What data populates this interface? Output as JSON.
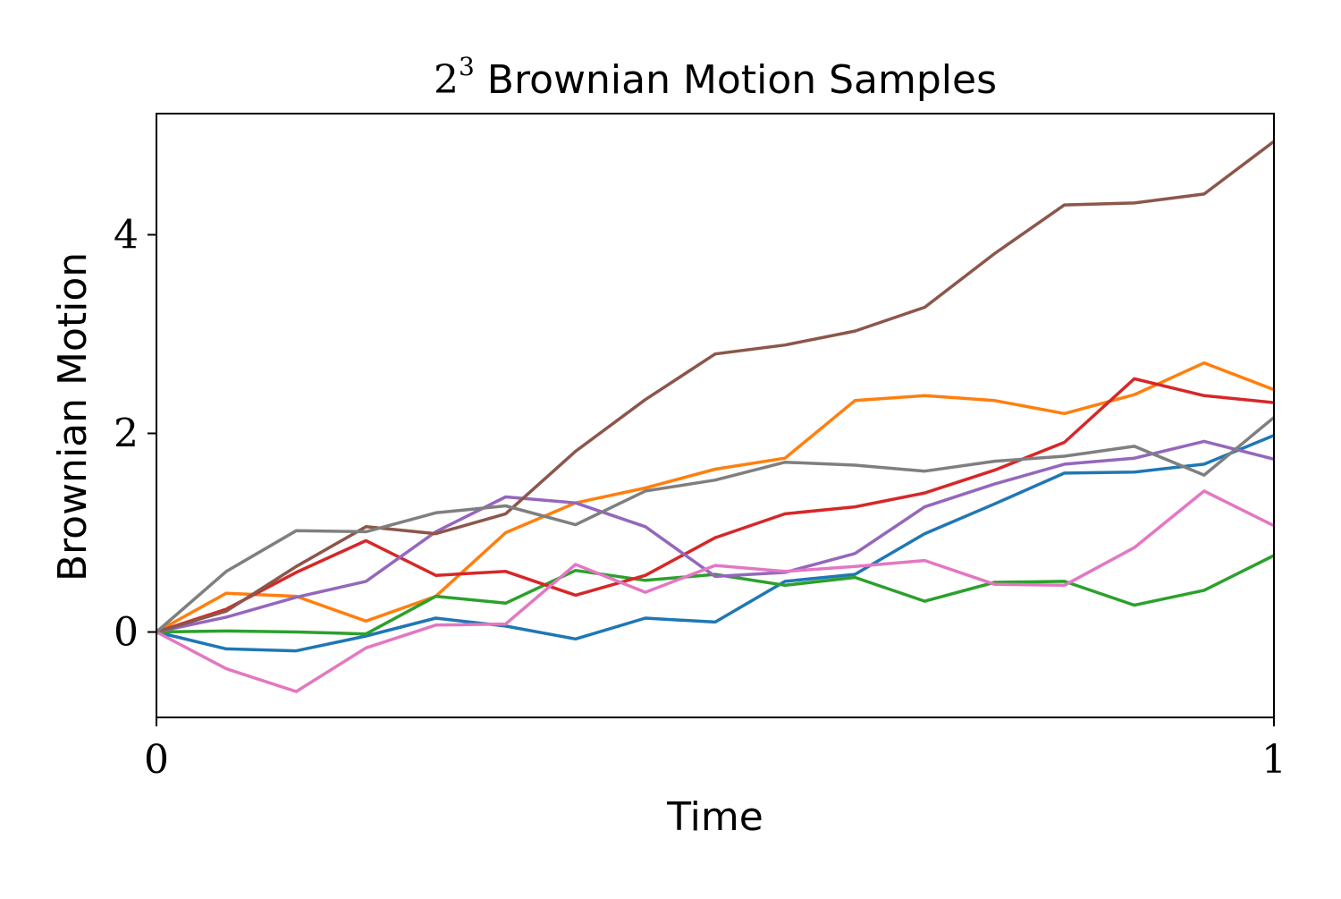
{
  "chart_data": {
    "type": "line",
    "title": {
      "base": "2",
      "exponent": "3",
      "text": " Brownian Motion Samples"
    },
    "xlabel": "Time",
    "ylabel": "Brownian Motion",
    "xlim": [
      0,
      1
    ],
    "ylim": [
      -0.86,
      5.22
    ],
    "xticks": [
      0,
      1
    ],
    "xtick_labels": [
      "0",
      "1"
    ],
    "yticks": [
      0,
      2,
      4
    ],
    "ytick_labels": [
      "0",
      "2",
      "4"
    ],
    "grid": false,
    "legend": "none",
    "x": [
      0,
      0.0625,
      0.125,
      0.1875,
      0.25,
      0.3125,
      0.375,
      0.4375,
      0.5,
      0.5625,
      0.625,
      0.6875,
      0.75,
      0.8125,
      0.875,
      0.9375,
      1.0
    ],
    "series": [
      {
        "color": "#1f77b4",
        "values": [
          0,
          -0.17,
          -0.19,
          -0.04,
          0.14,
          0.06,
          -0.07,
          0.14,
          0.1,
          0.51,
          0.58,
          0.99,
          1.29,
          1.6,
          1.61,
          1.69,
          1.98
        ]
      },
      {
        "color": "#ff7f0e",
        "values": [
          0,
          0.39,
          0.36,
          0.11,
          0.36,
          1.0,
          1.3,
          1.45,
          1.64,
          1.75,
          2.33,
          2.38,
          2.33,
          2.2,
          2.39,
          2.71,
          2.44
        ]
      },
      {
        "color": "#2ca02c",
        "values": [
          0,
          0.01,
          0.0,
          -0.02,
          0.36,
          0.29,
          0.62,
          0.52,
          0.58,
          0.47,
          0.55,
          0.31,
          0.5,
          0.51,
          0.27,
          0.42,
          0.77
        ]
      },
      {
        "color": "#d62728",
        "values": [
          0,
          0.23,
          0.6,
          0.92,
          0.57,
          0.61,
          0.37,
          0.57,
          0.95,
          1.19,
          1.26,
          1.4,
          1.63,
          1.91,
          2.55,
          2.38,
          2.31
        ]
      },
      {
        "color": "#9467bd",
        "values": [
          0,
          0.15,
          0.35,
          0.51,
          1.01,
          1.36,
          1.3,
          1.06,
          0.56,
          0.6,
          0.79,
          1.26,
          1.49,
          1.69,
          1.75,
          1.92,
          1.74
        ]
      },
      {
        "color": "#8c564b",
        "values": [
          0,
          0.21,
          0.66,
          1.06,
          0.99,
          1.19,
          1.82,
          2.34,
          2.8,
          2.89,
          3.03,
          3.27,
          3.81,
          4.3,
          4.32,
          4.41,
          4.94
        ]
      },
      {
        "color": "#e377c2",
        "values": [
          0,
          -0.37,
          -0.6,
          -0.16,
          0.07,
          0.08,
          0.68,
          0.4,
          0.67,
          0.61,
          0.66,
          0.72,
          0.48,
          0.47,
          0.85,
          1.42,
          1.07
        ]
      },
      {
        "color": "#7f7f7f",
        "values": [
          0,
          0.61,
          1.02,
          1.01,
          1.2,
          1.27,
          1.08,
          1.42,
          1.53,
          1.71,
          1.68,
          1.62,
          1.72,
          1.77,
          1.87,
          1.58,
          2.16
        ]
      }
    ]
  }
}
